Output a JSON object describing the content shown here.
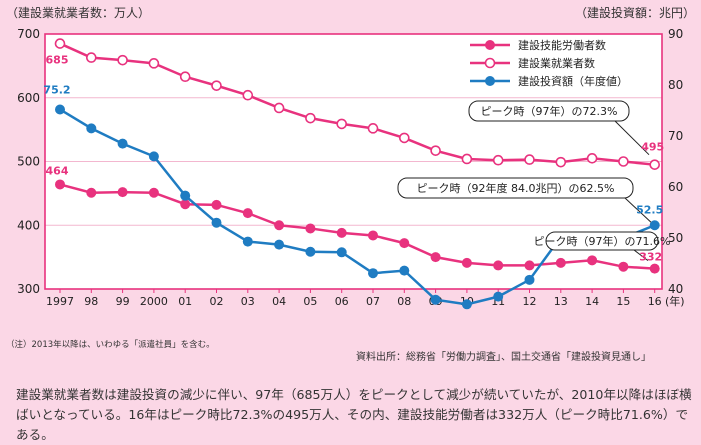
{
  "header": {
    "left_unit": "（建設業就業者数：万人）",
    "right_unit": "（建設投資額：兆円）"
  },
  "footer": {
    "note": "（注）2013年以降は、いわゆる「派遣社員」を含む。",
    "source": "資料出所：総務省「労働力調査」、国土交通省「建設投資見通し」",
    "summary": "建設業就業者数は建設投資の減少に伴い、97年（685万人）をピークとして減少が続いていたが、2010年以降はほぼ横ばいとなっている。16年はピーク時比72.3%の495万人、その内、建設技能労働者は332万人（ピーク時比71.6%）である。"
  },
  "colors": {
    "pink": "#e8327e",
    "blue": "#1f7cc2",
    "frame": "#e8327e",
    "grid": "#f3b7cf"
  },
  "chart_data": {
    "type": "line",
    "categories": [
      "1997",
      "98",
      "99",
      "2000",
      "01",
      "02",
      "03",
      "04",
      "05",
      "06",
      "07",
      "08",
      "09",
      "10",
      "11",
      "12",
      "13",
      "14",
      "15",
      "16"
    ],
    "x_unit": "(年)",
    "y_left": {
      "ticks": [
        300,
        400,
        500,
        600,
        700
      ],
      "range": [
        300,
        700
      ]
    },
    "y_right": {
      "ticks": [
        40,
        50,
        60,
        70,
        80,
        90
      ],
      "range": [
        40,
        90
      ]
    },
    "series": [
      {
        "name": "建設技能労働者数",
        "axis": "left",
        "marker": "filled",
        "color": "#e8327e",
        "values": [
          464,
          451,
          452,
          451,
          433,
          432,
          419,
          400,
          395,
          388,
          384,
          372,
          350,
          341,
          337,
          337,
          341,
          345,
          335,
          332
        ]
      },
      {
        "name": "建設業就業者数",
        "axis": "left",
        "marker": "open",
        "color": "#e8327e",
        "values": [
          685,
          663,
          659,
          654,
          633,
          619,
          604,
          584,
          568,
          559,
          552,
          537,
          517,
          504,
          502,
          503,
          499,
          505,
          500,
          495
        ]
      },
      {
        "name": "建設投資額（年度値）",
        "axis": "right",
        "marker": "filled",
        "color": "#1f7cc2",
        "values": [
          75.2,
          71.5,
          68.5,
          66.0,
          58.3,
          53.0,
          49.3,
          48.7,
          47.3,
          47.2,
          43.1,
          43.6,
          37.9,
          37.0,
          38.5,
          41.8,
          50.2,
          50.2,
          50.0,
          52.5
        ]
      }
    ],
    "data_labels": [
      {
        "series": 1,
        "index": 0,
        "text": "685"
      },
      {
        "series": 2,
        "index": 0,
        "text": "75.2"
      },
      {
        "series": 0,
        "index": 0,
        "text": "464"
      },
      {
        "series": 1,
        "index": 19,
        "text": "495"
      },
      {
        "series": 2,
        "index": 19,
        "text": "52.5"
      },
      {
        "series": 0,
        "index": 19,
        "text": "332"
      }
    ],
    "callouts": [
      {
        "text": "ピーク時（97年）の72.3%"
      },
      {
        "text": "ピーク時（92年度 84.0兆円）の62.5%"
      },
      {
        "text": "ピーク時（97年）の71.6%"
      }
    ]
  }
}
